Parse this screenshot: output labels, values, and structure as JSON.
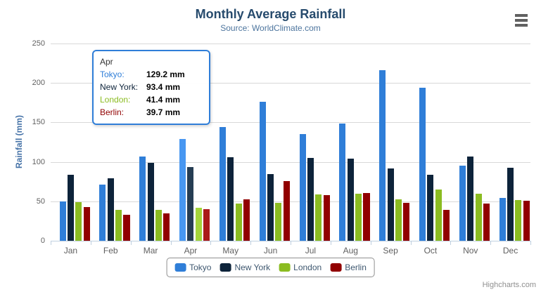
{
  "chart_data": {
    "type": "bar",
    "title": "Monthly Average Rainfall",
    "subtitle": "Source: WorldClimate.com",
    "xlabel": "",
    "ylabel": "Rainfall (mm)",
    "ylim": [
      0,
      250
    ],
    "ytick_interval": 50,
    "grid": true,
    "legend_position": "bottom",
    "categories": [
      "Jan",
      "Feb",
      "Mar",
      "Apr",
      "May",
      "Jun",
      "Jul",
      "Aug",
      "Sep",
      "Oct",
      "Nov",
      "Dec"
    ],
    "series": [
      {
        "name": "Tokyo",
        "color": "#2f7ed8",
        "hover_color": "#4897f1",
        "values": [
          49.9,
          71.5,
          106.4,
          129.2,
          144.0,
          176.0,
          135.6,
          148.5,
          216.4,
          194.1,
          95.6,
          54.4
        ]
      },
      {
        "name": "New York",
        "color": "#0d233a",
        "hover_color": "#263d53",
        "values": [
          83.6,
          78.8,
          98.5,
          93.4,
          106.0,
          84.5,
          105.0,
          104.3,
          91.2,
          83.5,
          106.6,
          92.3
        ]
      },
      {
        "name": "London",
        "color": "#8bbc21",
        "hover_color": "#a4d53a",
        "values": [
          48.9,
          38.8,
          39.3,
          41.4,
          47.0,
          48.3,
          59.0,
          59.6,
          52.4,
          65.2,
          59.3,
          51.2
        ]
      },
      {
        "name": "Berlin",
        "color": "#910000",
        "hover_color": "#aa1919",
        "values": [
          42.4,
          33.2,
          34.5,
          39.7,
          52.6,
          75.5,
          57.4,
          60.4,
          47.6,
          39.1,
          46.8,
          51.1
        ]
      }
    ],
    "hover_category_index": 3
  },
  "tooltip": {
    "header": "Apr",
    "rows": [
      {
        "label": "Tokyo:",
        "value": "129.2 mm",
        "color": "#2f7ed8"
      },
      {
        "label": "New York:",
        "value": "93.4 mm",
        "color": "#0d233a"
      },
      {
        "label": "London:",
        "value": "41.4 mm",
        "color": "#8bbc21"
      },
      {
        "label": "Berlin:",
        "value": "39.7 mm",
        "color": "#910000"
      }
    ]
  },
  "credit": "Highcharts.com",
  "colors": {
    "title": "#274b6d",
    "subtitle": "#4d759e",
    "axis_title": "#4572a7",
    "gridline": "#d8d8d8",
    "axis_line": "#c0d0e0",
    "labels": "#606060",
    "tooltip_border": "#2f7ed8"
  }
}
